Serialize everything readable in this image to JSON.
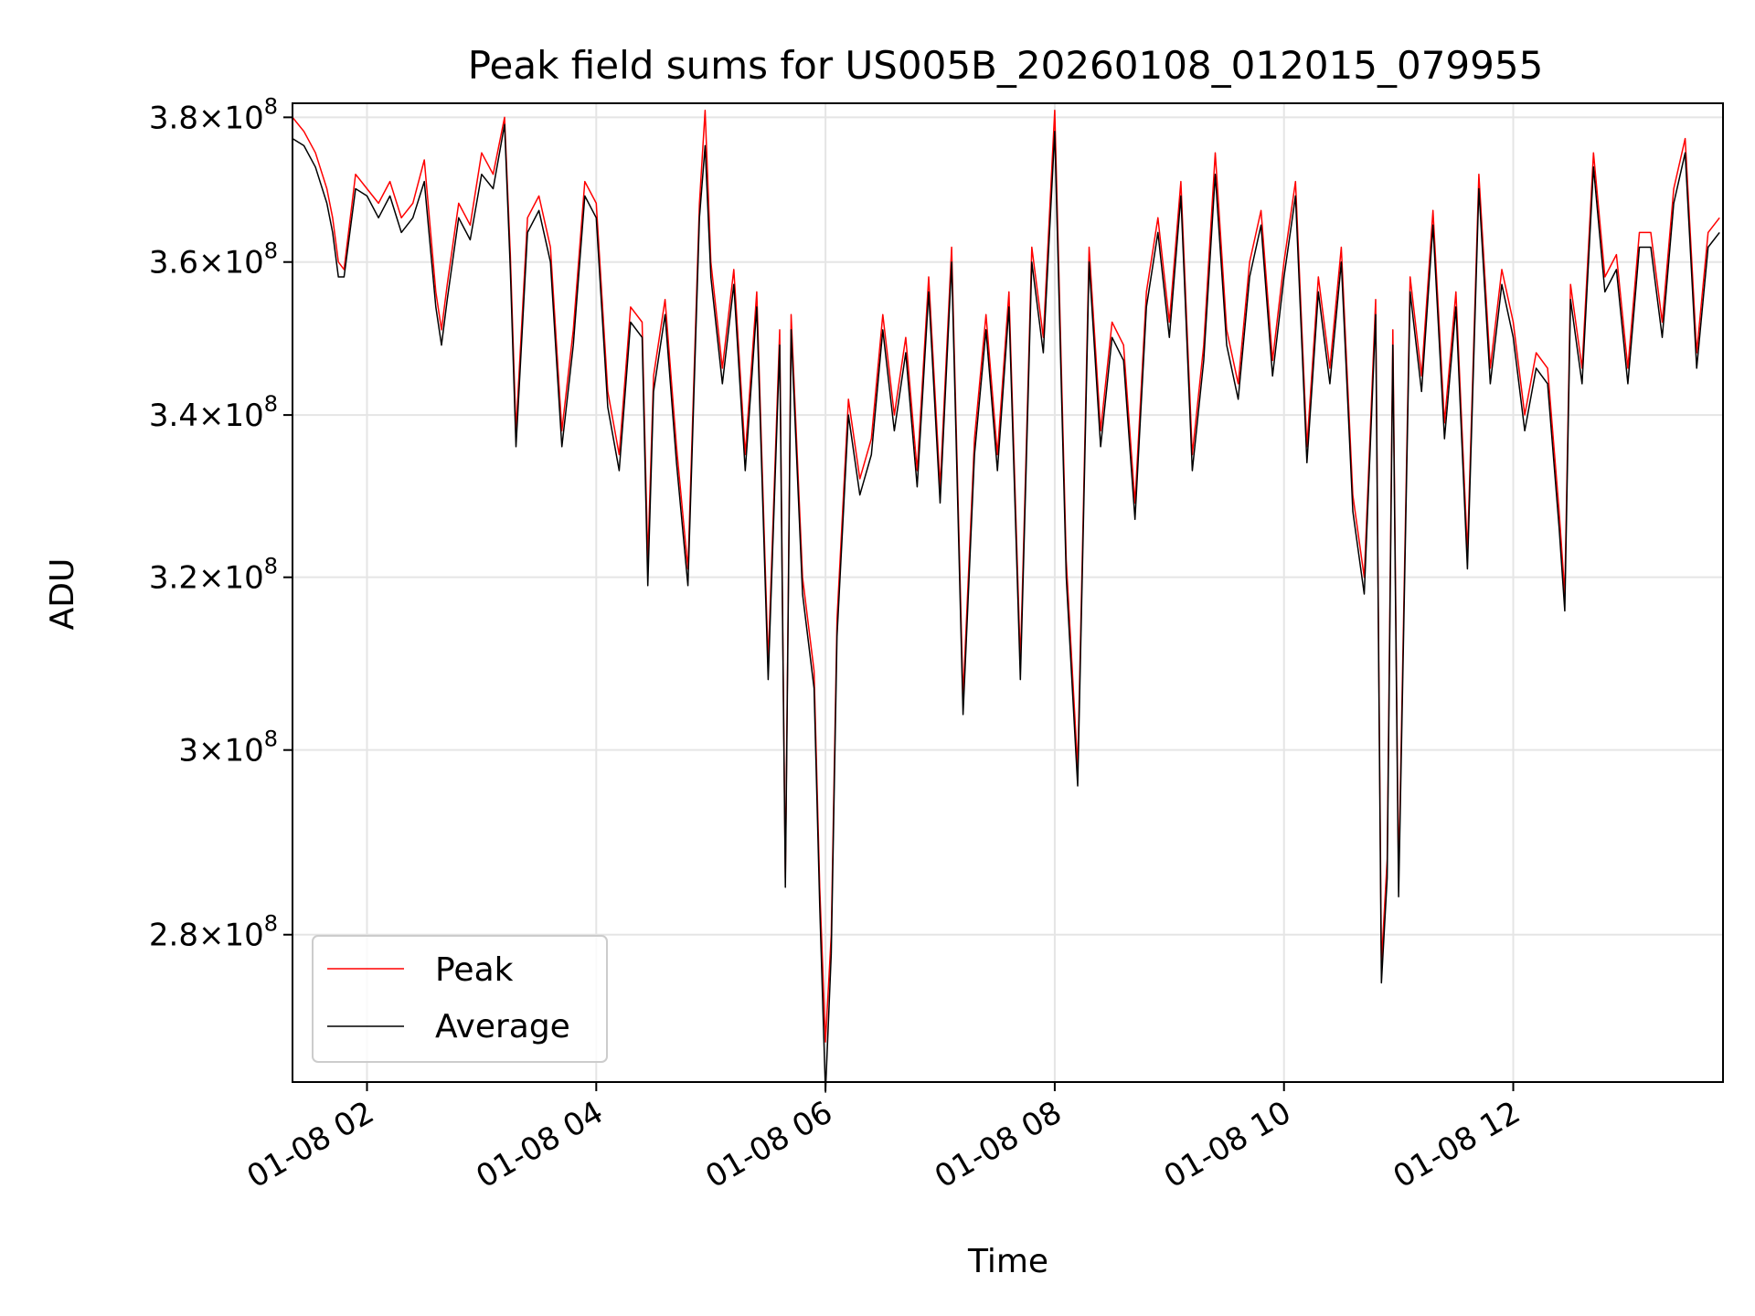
{
  "chart_data": {
    "type": "line",
    "title": "Peak field sums for US005B_20260108_012015_079955",
    "xlabel": "Time",
    "ylabel": "ADU",
    "y_scale": "log",
    "ylim": [
      265000000,
      382000000
    ],
    "x_range_hours": [
      1.35,
      13.83
    ],
    "grid": true,
    "legend_position": "lower-left",
    "x_ticks": [
      {
        "hour": 2,
        "label": "01-08 02"
      },
      {
        "hour": 4,
        "label": "01-08 04"
      },
      {
        "hour": 6,
        "label": "01-08 06"
      },
      {
        "hour": 8,
        "label": "01-08 08"
      },
      {
        "hour": 10,
        "label": "01-08 10"
      },
      {
        "hour": 12,
        "label": "01-08 12"
      }
    ],
    "y_ticks": [
      {
        "value": 280000000,
        "mantissa": "2.8",
        "exp": "8"
      },
      {
        "value": 300000000,
        "mantissa": "3",
        "exp": "8"
      },
      {
        "value": 320000000,
        "mantissa": "3.2",
        "exp": "8"
      },
      {
        "value": 340000000,
        "mantissa": "3.4",
        "exp": "8"
      },
      {
        "value": 360000000,
        "mantissa": "3.6",
        "exp": "8"
      },
      {
        "value": 380000000,
        "mantissa": "3.8",
        "exp": "8"
      }
    ],
    "times_label": "x"
  },
  "series": [
    {
      "name": "Peak",
      "color": "#ff0000",
      "x": [
        1.35,
        1.45,
        1.55,
        1.65,
        1.7,
        1.75,
        1.8,
        1.9,
        2.0,
        2.1,
        2.2,
        2.3,
        2.4,
        2.5,
        2.6,
        2.65,
        2.7,
        2.8,
        2.9,
        3.0,
        3.1,
        3.2,
        3.25,
        3.3,
        3.4,
        3.5,
        3.6,
        3.7,
        3.8,
        3.9,
        4.0,
        4.1,
        4.2,
        4.3,
        4.4,
        4.45,
        4.5,
        4.6,
        4.7,
        4.8,
        4.9,
        4.95,
        5.0,
        5.1,
        5.2,
        5.3,
        5.4,
        5.5,
        5.6,
        5.65,
        5.7,
        5.8,
        5.9,
        5.95,
        6.0,
        6.05,
        6.1,
        6.2,
        6.3,
        6.4,
        6.5,
        6.6,
        6.7,
        6.8,
        6.9,
        7.0,
        7.1,
        7.2,
        7.3,
        7.4,
        7.5,
        7.6,
        7.7,
        7.8,
        7.9,
        8.0,
        8.1,
        8.2,
        8.3,
        8.4,
        8.5,
        8.6,
        8.7,
        8.8,
        8.9,
        9.0,
        9.1,
        9.2,
        9.3,
        9.4,
        9.5,
        9.6,
        9.7,
        9.8,
        9.9,
        10.0,
        10.1,
        10.2,
        10.3,
        10.4,
        10.5,
        10.6,
        10.7,
        10.8,
        10.85,
        10.9,
        10.95,
        11.0,
        11.1,
        11.2,
        11.3,
        11.4,
        11.5,
        11.6,
        11.7,
        11.8,
        11.9,
        12.0,
        12.1,
        12.2,
        12.3,
        12.4,
        12.45,
        12.5,
        12.6,
        12.7,
        12.8,
        12.9,
        13.0,
        13.1,
        13.2,
        13.3,
        13.4,
        13.5,
        13.6,
        13.7,
        13.8
      ],
      "y": [
        380000000,
        378000000,
        375000000,
        370000000,
        366000000,
        360000000,
        359000000,
        372000000,
        370000000,
        368000000,
        371000000,
        366000000,
        368000000,
        374000000,
        356000000,
        351000000,
        357000000,
        368000000,
        365000000,
        375000000,
        372000000,
        380000000,
        361000000,
        338000000,
        366000000,
        369000000,
        362000000,
        338000000,
        351000000,
        371000000,
        368000000,
        343000000,
        335000000,
        354000000,
        352000000,
        322000000,
        345000000,
        355000000,
        336000000,
        321000000,
        368000000,
        381000000,
        360000000,
        346000000,
        359000000,
        335000000,
        356000000,
        310000000,
        351000000,
        286000000,
        353000000,
        320000000,
        309000000,
        285000000,
        269000000,
        280000000,
        315000000,
        342000000,
        332000000,
        337000000,
        353000000,
        340000000,
        350000000,
        333000000,
        358000000,
        331000000,
        362000000,
        306000000,
        337000000,
        353000000,
        335000000,
        356000000,
        310000000,
        362000000,
        350000000,
        381000000,
        322000000,
        298000000,
        362000000,
        338000000,
        352000000,
        349000000,
        329000000,
        356000000,
        366000000,
        352000000,
        371000000,
        335000000,
        349000000,
        375000000,
        351000000,
        344000000,
        360000000,
        367000000,
        347000000,
        360000000,
        371000000,
        336000000,
        358000000,
        346000000,
        362000000,
        330000000,
        320000000,
        355000000,
        277000000,
        288000000,
        351000000,
        286000000,
        358000000,
        345000000,
        367000000,
        339000000,
        356000000,
        323000000,
        372000000,
        346000000,
        359000000,
        352000000,
        340000000,
        348000000,
        346000000,
        328000000,
        318000000,
        357000000,
        346000000,
        375000000,
        358000000,
        361000000,
        346000000,
        364000000,
        364000000,
        352000000,
        370000000,
        377000000,
        348000000,
        364000000,
        366000000
      ]
    },
    {
      "name": "Average",
      "color": "#000000",
      "x": [
        1.35,
        1.45,
        1.55,
        1.65,
        1.7,
        1.75,
        1.8,
        1.9,
        2.0,
        2.1,
        2.2,
        2.3,
        2.4,
        2.5,
        2.6,
        2.65,
        2.7,
        2.8,
        2.9,
        3.0,
        3.1,
        3.2,
        3.25,
        3.3,
        3.4,
        3.5,
        3.6,
        3.7,
        3.8,
        3.9,
        4.0,
        4.1,
        4.2,
        4.3,
        4.4,
        4.45,
        4.5,
        4.6,
        4.7,
        4.8,
        4.9,
        4.95,
        5.0,
        5.1,
        5.2,
        5.3,
        5.4,
        5.5,
        5.6,
        5.65,
        5.7,
        5.8,
        5.9,
        5.95,
        6.0,
        6.05,
        6.1,
        6.2,
        6.3,
        6.4,
        6.5,
        6.6,
        6.7,
        6.8,
        6.9,
        7.0,
        7.1,
        7.2,
        7.3,
        7.4,
        7.5,
        7.6,
        7.7,
        7.8,
        7.9,
        8.0,
        8.1,
        8.2,
        8.3,
        8.4,
        8.5,
        8.6,
        8.7,
        8.8,
        8.9,
        9.0,
        9.1,
        9.2,
        9.3,
        9.4,
        9.5,
        9.6,
        9.7,
        9.8,
        9.9,
        10.0,
        10.1,
        10.2,
        10.3,
        10.4,
        10.5,
        10.6,
        10.7,
        10.8,
        10.85,
        10.9,
        10.95,
        11.0,
        11.1,
        11.2,
        11.3,
        11.4,
        11.5,
        11.6,
        11.7,
        11.8,
        11.9,
        12.0,
        12.1,
        12.2,
        12.3,
        12.4,
        12.45,
        12.5,
        12.6,
        12.7,
        12.8,
        12.9,
        13.0,
        13.1,
        13.2,
        13.3,
        13.4,
        13.5,
        13.6,
        13.7,
        13.8
      ],
      "y": [
        377000000,
        376000000,
        373000000,
        368000000,
        364000000,
        358000000,
        358000000,
        370000000,
        369000000,
        366000000,
        369000000,
        364000000,
        366000000,
        371000000,
        354000000,
        349000000,
        355000000,
        366000000,
        363000000,
        372000000,
        370000000,
        379000000,
        359000000,
        336000000,
        364000000,
        367000000,
        360000000,
        336000000,
        349000000,
        369000000,
        366000000,
        341000000,
        333000000,
        352000000,
        350000000,
        319000000,
        343000000,
        353000000,
        334000000,
        319000000,
        366000000,
        376000000,
        358000000,
        344000000,
        357000000,
        333000000,
        354000000,
        308000000,
        349000000,
        285000000,
        351000000,
        318000000,
        307000000,
        283000000,
        264000000,
        278000000,
        313000000,
        340000000,
        330000000,
        335000000,
        351000000,
        338000000,
        348000000,
        331000000,
        356000000,
        329000000,
        360000000,
        304000000,
        335000000,
        351000000,
        333000000,
        354000000,
        308000000,
        360000000,
        348000000,
        378000000,
        320000000,
        296000000,
        360000000,
        336000000,
        350000000,
        347000000,
        327000000,
        354000000,
        364000000,
        350000000,
        369000000,
        333000000,
        347000000,
        372000000,
        349000000,
        342000000,
        358000000,
        365000000,
        345000000,
        358000000,
        369000000,
        334000000,
        356000000,
        344000000,
        360000000,
        328000000,
        318000000,
        353000000,
        275000000,
        286000000,
        349000000,
        284000000,
        356000000,
        343000000,
        365000000,
        337000000,
        354000000,
        321000000,
        370000000,
        344000000,
        357000000,
        350000000,
        338000000,
        346000000,
        344000000,
        326000000,
        316000000,
        355000000,
        344000000,
        373000000,
        356000000,
        359000000,
        344000000,
        362000000,
        362000000,
        350000000,
        368000000,
        375000000,
        346000000,
        362000000,
        364000000
      ]
    }
  ],
  "legend": {
    "peak": "Peak",
    "average": "Average"
  }
}
